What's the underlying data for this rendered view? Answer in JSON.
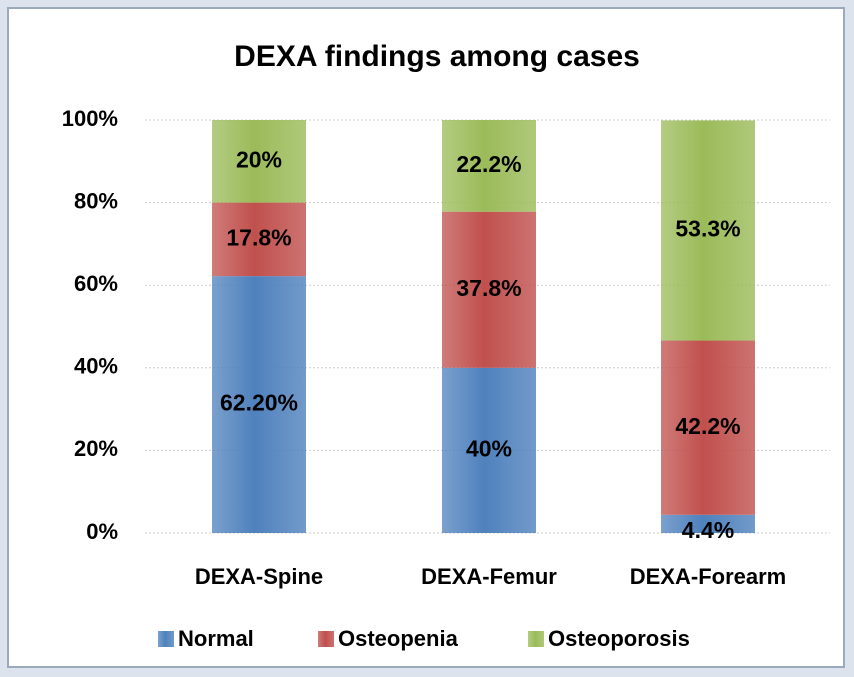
{
  "chart_data": {
    "type": "bar",
    "stacked": true,
    "title": "DEXA findings among cases",
    "categories": [
      "DEXA-Spine",
      "DEXA-Femur",
      "DEXA-Forearm"
    ],
    "series": [
      {
        "name": "Normal",
        "color": "#4f81bd",
        "values": [
          62.2,
          40,
          4.4
        ],
        "value_labels": [
          "62.20%",
          "40%",
          "4.4%"
        ]
      },
      {
        "name": "Osteopenia",
        "color": "#c0504d",
        "values": [
          17.8,
          37.8,
          42.2
        ],
        "value_labels": [
          "17.8%",
          "37.8%",
          "42.2%"
        ]
      },
      {
        "name": "Osteoporosis",
        "color": "#9bbb59",
        "values": [
          20,
          22.2,
          53.3
        ],
        "value_labels": [
          "20%",
          "22.2%",
          "53.3%"
        ]
      }
    ],
    "ylim": [
      0,
      100
    ],
    "yticks": [
      {
        "value": 0,
        "label": "0%"
      },
      {
        "value": 20,
        "label": "20%"
      },
      {
        "value": 40,
        "label": "40%"
      },
      {
        "value": 60,
        "label": "60%"
      },
      {
        "value": 80,
        "label": "80%"
      },
      {
        "value": 100,
        "label": "100%"
      }
    ],
    "grid": true,
    "legend": "bottom"
  }
}
